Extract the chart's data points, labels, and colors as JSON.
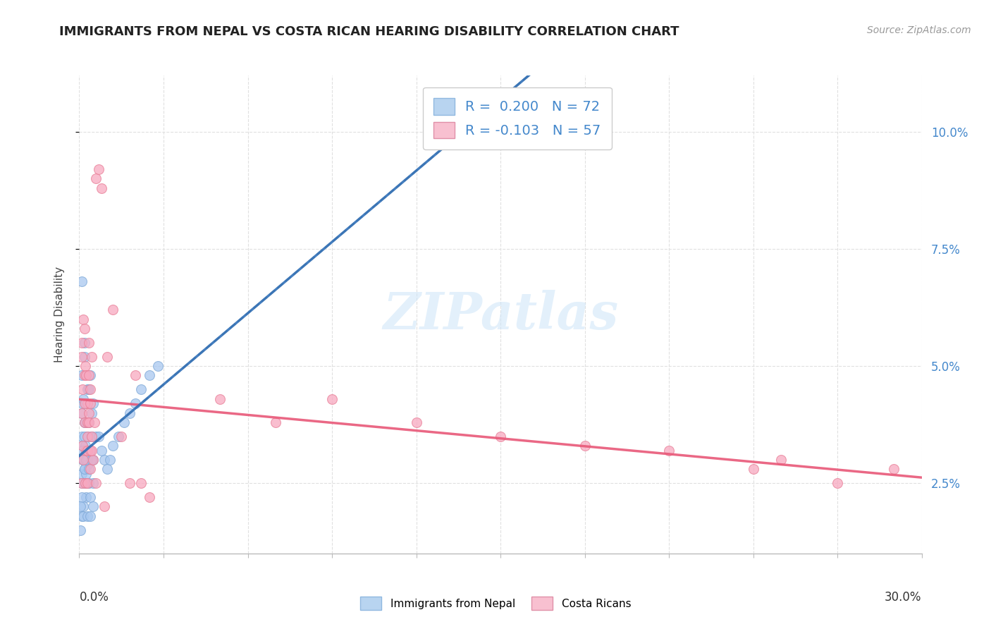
{
  "title": "IMMIGRANTS FROM NEPAL VS COSTA RICAN HEARING DISABILITY CORRELATION CHART",
  "source": "Source: ZipAtlas.com",
  "ylabel": "Hearing Disability",
  "ytick_labels": [
    "2.5%",
    "5.0%",
    "7.5%",
    "10.0%"
  ],
  "ytick_values": [
    0.025,
    0.05,
    0.075,
    0.1
  ],
  "xlim": [
    0.0,
    0.3
  ],
  "ylim": [
    0.01,
    0.112
  ],
  "legend_entry1": "R =  0.200   N = 72",
  "legend_entry2": "R = -0.103   N = 57",
  "legend_color1": "#b8d4f0",
  "legend_color2": "#f8c0d0",
  "dot_color_blue": "#a8c8f0",
  "dot_color_pink": "#f8a8c0",
  "dot_edge_blue": "#80aad8",
  "dot_edge_pink": "#e88098",
  "trend_color_blue": "#3070b8",
  "trend_color_pink": "#e85878",
  "trend_color_dashed": "#999999",
  "background_color": "#ffffff",
  "grid_color": "#e0e0e0",
  "title_fontsize": 13,
  "source_fontsize": 10,
  "axis_label_fontsize": 11,
  "tick_label_fontsize": 12,
  "legend_fontsize": 14,
  "nepal_x": [
    0.0008,
    0.001,
    0.0012,
    0.0015,
    0.0018,
    0.002,
    0.0022,
    0.0025,
    0.0028,
    0.003,
    0.0008,
    0.001,
    0.0012,
    0.0015,
    0.0018,
    0.002,
    0.0022,
    0.0025,
    0.0028,
    0.003,
    0.0008,
    0.001,
    0.0012,
    0.0015,
    0.0018,
    0.002,
    0.0022,
    0.0025,
    0.0028,
    0.003,
    0.0008,
    0.001,
    0.0012,
    0.0015,
    0.0018,
    0.002,
    0.0022,
    0.0025,
    0.0028,
    0.003,
    0.0033,
    0.0035,
    0.0038,
    0.004,
    0.0043,
    0.0045,
    0.0048,
    0.005,
    0.0033,
    0.0035,
    0.0038,
    0.004,
    0.0043,
    0.0045,
    0.0048,
    0.005,
    0.006,
    0.007,
    0.008,
    0.009,
    0.01,
    0.011,
    0.012,
    0.014,
    0.016,
    0.018,
    0.02,
    0.022,
    0.025,
    0.028,
    0.0005,
    0.0003
  ],
  "nepal_y": [
    0.035,
    0.068,
    0.042,
    0.03,
    0.038,
    0.025,
    0.032,
    0.022,
    0.038,
    0.045,
    0.048,
    0.027,
    0.033,
    0.02,
    0.052,
    0.03,
    0.038,
    0.025,
    0.029,
    0.035,
    0.04,
    0.022,
    0.03,
    0.043,
    0.028,
    0.055,
    0.033,
    0.027,
    0.038,
    0.03,
    0.018,
    0.025,
    0.032,
    0.018,
    0.028,
    0.035,
    0.042,
    0.03,
    0.025,
    0.018,
    0.045,
    0.028,
    0.032,
    0.022,
    0.04,
    0.035,
    0.02,
    0.03,
    0.038,
    0.025,
    0.018,
    0.048,
    0.035,
    0.03,
    0.042,
    0.025,
    0.035,
    0.035,
    0.032,
    0.03,
    0.028,
    0.03,
    0.033,
    0.035,
    0.038,
    0.04,
    0.042,
    0.045,
    0.048,
    0.05,
    0.015,
    0.02
  ],
  "costarica_x": [
    0.0008,
    0.001,
    0.0012,
    0.0015,
    0.0018,
    0.002,
    0.0022,
    0.0025,
    0.0028,
    0.003,
    0.0008,
    0.001,
    0.0012,
    0.0015,
    0.0018,
    0.002,
    0.0022,
    0.0025,
    0.0028,
    0.003,
    0.0033,
    0.0035,
    0.0038,
    0.004,
    0.0043,
    0.0045,
    0.0048,
    0.0033,
    0.0035,
    0.0038,
    0.004,
    0.006,
    0.007,
    0.008,
    0.01,
    0.012,
    0.02,
    0.05,
    0.07,
    0.09,
    0.12,
    0.15,
    0.18,
    0.21,
    0.24,
    0.25,
    0.27,
    0.29,
    0.003,
    0.0055,
    0.006,
    0.0045,
    0.009,
    0.015,
    0.018,
    0.022,
    0.025
  ],
  "costarica_y": [
    0.04,
    0.055,
    0.045,
    0.06,
    0.048,
    0.038,
    0.05,
    0.032,
    0.042,
    0.035,
    0.025,
    0.052,
    0.033,
    0.03,
    0.058,
    0.042,
    0.025,
    0.048,
    0.032,
    0.038,
    0.055,
    0.04,
    0.045,
    0.028,
    0.052,
    0.035,
    0.03,
    0.048,
    0.038,
    0.032,
    0.042,
    0.09,
    0.092,
    0.088,
    0.052,
    0.062,
    0.048,
    0.043,
    0.038,
    0.043,
    0.038,
    0.035,
    0.033,
    0.032,
    0.028,
    0.03,
    0.025,
    0.028,
    0.025,
    0.038,
    0.025,
    0.032,
    0.02,
    0.035,
    0.025,
    0.025,
    0.022
  ],
  "watermark_text": "ZIPatlas",
  "dot_size": 100,
  "dot_alpha": 0.75
}
